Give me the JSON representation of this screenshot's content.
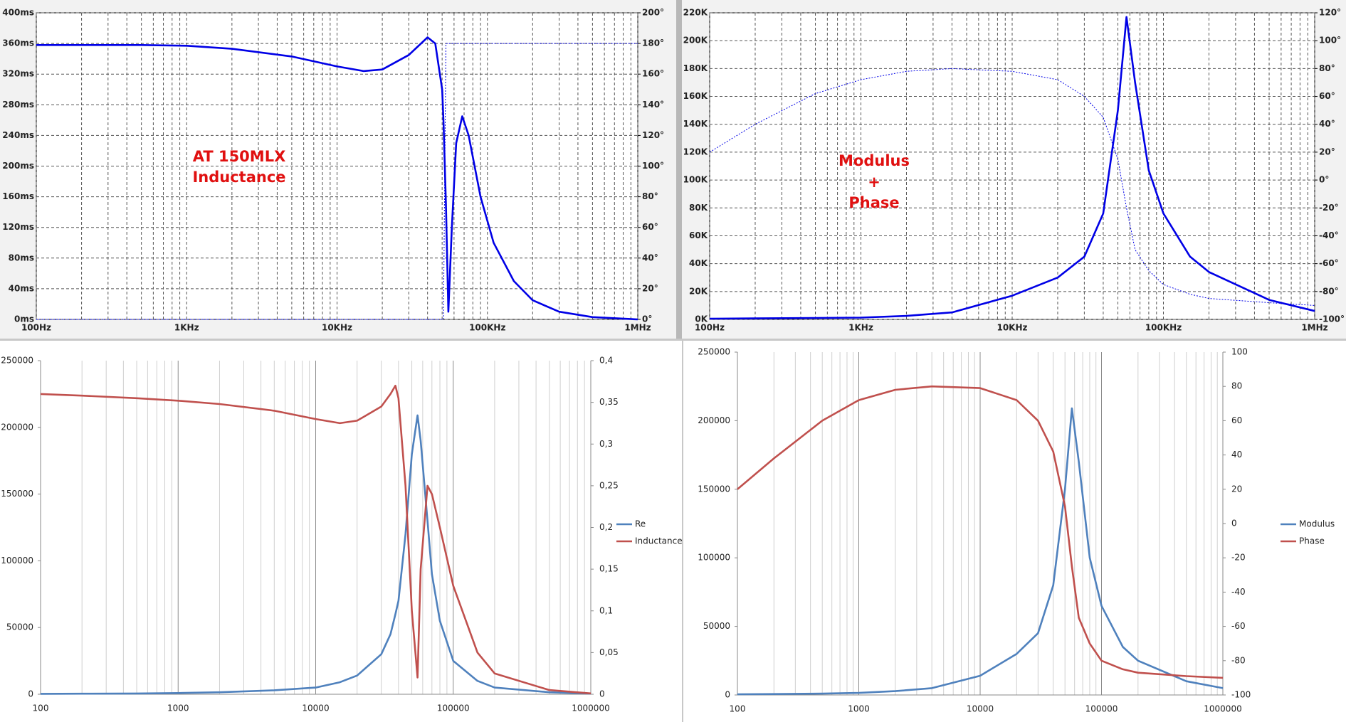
{
  "chart_data": [
    {
      "type": "line",
      "x_scale": "log",
      "grid": "both",
      "grid_style": "dashed",
      "annotations": [
        "AT 150MLX",
        "Inductance"
      ],
      "x": [
        100,
        200,
        500,
        1000,
        2000,
        5000,
        10000,
        15000,
        20000,
        30000,
        40000,
        45000,
        50000,
        51000,
        53000,
        55000,
        58000,
        62000,
        68000,
        75000,
        90000,
        110000,
        150000,
        200000,
        300000,
        500000,
        1000000
      ],
      "xlim": [
        100,
        1000000
      ],
      "xticks": [
        {
          "value": 100,
          "label": "100Hz"
        },
        {
          "value": 1000,
          "label": "1KHz"
        },
        {
          "value": 10000,
          "label": "10KHz"
        },
        {
          "value": 100000,
          "label": "100KHz"
        },
        {
          "value": 1000000,
          "label": "1MHz"
        }
      ],
      "ylim": [
        0,
        400
      ],
      "yticks": [
        {
          "value": 0,
          "label": "0ms"
        },
        {
          "value": 40,
          "label": "40ms"
        },
        {
          "value": 80,
          "label": "80ms"
        },
        {
          "value": 120,
          "label": "120ms"
        },
        {
          "value": 160,
          "label": "160ms"
        },
        {
          "value": 200,
          "label": "200ms"
        },
        {
          "value": 240,
          "label": "240ms"
        },
        {
          "value": 280,
          "label": "280ms"
        },
        {
          "value": 320,
          "label": "320ms"
        },
        {
          "value": 360,
          "label": "360ms"
        },
        {
          "value": 400,
          "label": "400ms"
        }
      ],
      "y2lim": [
        0,
        200
      ],
      "y2ticks": [
        {
          "value": 0,
          "label": "0°"
        },
        {
          "value": 20,
          "label": "20°"
        },
        {
          "value": 40,
          "label": "40°"
        },
        {
          "value": 60,
          "label": "60°"
        },
        {
          "value": 80,
          "label": "80°"
        },
        {
          "value": 100,
          "label": "100°"
        },
        {
          "value": 120,
          "label": "120°"
        },
        {
          "value": 140,
          "label": "140°"
        },
        {
          "value": 160,
          "label": "160°"
        },
        {
          "value": 180,
          "label": "180°"
        },
        {
          "value": 200,
          "label": "200°"
        }
      ],
      "series": [
        {
          "color": "#0000e6",
          "line_style": "solid",
          "values": [
            358,
            358,
            358,
            357,
            353,
            343,
            330,
            324,
            326,
            345,
            368,
            360,
            300,
            260,
            150,
            10,
            120,
            230,
            265,
            240,
            160,
            100,
            50,
            25,
            10,
            3,
            0
          ]
        },
        {
          "color": "#0000e6",
          "line_style": "dotted",
          "axis": "y2",
          "values": [
            0,
            0,
            0,
            0,
            0,
            0,
            0,
            0,
            0,
            0,
            0,
            0,
            0,
            0,
            180,
            180,
            180,
            180,
            180,
            180,
            180,
            180,
            180,
            180,
            180,
            180,
            180
          ]
        }
      ]
    },
    {
      "type": "line",
      "x_scale": "log",
      "grid": "both",
      "grid_style": "dashed",
      "annotations": [
        "Modulus",
        "+",
        "Phase"
      ],
      "x": [
        100,
        200,
        500,
        1000,
        2000,
        4000,
        10000,
        20000,
        30000,
        40000,
        50000,
        57000,
        65000,
        80000,
        100000,
        150000,
        200000,
        500000,
        1000000
      ],
      "xlim": [
        100,
        1000000
      ],
      "xticks": [
        {
          "value": 100,
          "label": "100Hz"
        },
        {
          "value": 1000,
          "label": "1KHz"
        },
        {
          "value": 10000,
          "label": "10KHz"
        },
        {
          "value": 100000,
          "label": "100KHz"
        },
        {
          "value": 1000000,
          "label": "1MHz"
        }
      ],
      "ylim": [
        0,
        220000
      ],
      "yticks": [
        {
          "value": 0,
          "label": "0K"
        },
        {
          "value": 20000,
          "label": "20K"
        },
        {
          "value": 40000,
          "label": "40K"
        },
        {
          "value": 60000,
          "label": "60K"
        },
        {
          "value": 80000,
          "label": "80K"
        },
        {
          "value": 100000,
          "label": "100K"
        },
        {
          "value": 120000,
          "label": "120K"
        },
        {
          "value": 140000,
          "label": "140K"
        },
        {
          "value": 160000,
          "label": "160K"
        },
        {
          "value": 180000,
          "label": "180K"
        },
        {
          "value": 200000,
          "label": "200K"
        },
        {
          "value": 220000,
          "label": "220K"
        }
      ],
      "y2lim": [
        -100,
        120
      ],
      "y2ticks": [
        {
          "value": -100,
          "label": "-100°"
        },
        {
          "value": -80,
          "label": "-80°"
        },
        {
          "value": -60,
          "label": "-60°"
        },
        {
          "value": -40,
          "label": "-40°"
        },
        {
          "value": -20,
          "label": "-20°"
        },
        {
          "value": 0,
          "label": "0°"
        },
        {
          "value": 20,
          "label": "20°"
        },
        {
          "value": 40,
          "label": "40°"
        },
        {
          "value": 60,
          "label": "60°"
        },
        {
          "value": 80,
          "label": "80°"
        },
        {
          "value": 100,
          "label": "100°"
        },
        {
          "value": 120,
          "label": "120°"
        }
      ],
      "series": [
        {
          "color": "#0000e6",
          "line_style": "solid",
          "values": [
            500,
            700,
            1000,
            1300,
            2500,
            5000,
            17000,
            30000,
            45000,
            76000,
            150000,
            217000,
            170000,
            107000,
            76000,
            45000,
            34000,
            14000,
            6000
          ]
        },
        {
          "color": "#0000e6",
          "line_style": "dotted",
          "axis": "y2",
          "values": [
            20,
            40,
            62,
            72,
            78,
            80,
            78,
            72,
            60,
            45,
            15,
            -20,
            -50,
            -65,
            -75,
            -82,
            -85,
            -88,
            -90
          ]
        }
      ]
    },
    {
      "type": "line",
      "x_scale": "log",
      "grid": "x",
      "grid_style": "solid",
      "legend": "right",
      "x": [
        100,
        200,
        500,
        1000,
        2000,
        5000,
        10000,
        15000,
        20000,
        30000,
        35000,
        38000,
        40000,
        45000,
        50000,
        55000,
        58000,
        65000,
        70000,
        80000,
        100000,
        150000,
        200000,
        500000,
        1000000
      ],
      "xlim": [
        100,
        1000000
      ],
      "xticks": [
        100,
        1000,
        10000,
        100000,
        1000000
      ],
      "ylim": [
        0,
        250000
      ],
      "yticks": [
        0,
        50000,
        100000,
        150000,
        200000,
        250000
      ],
      "y2lim": [
        0,
        0.4
      ],
      "y2ticks": [
        0,
        {
          "value": 0.05,
          "label": "0,05"
        },
        {
          "value": 0.1,
          "label": "0,1"
        },
        {
          "value": 0.15,
          "label": "0,15"
        },
        {
          "value": 0.2,
          "label": "0,2"
        },
        {
          "value": 0.25,
          "label": "0,25"
        },
        {
          "value": 0.3,
          "label": "0,3"
        },
        {
          "value": 0.35,
          "label": "0,35"
        },
        {
          "value": 0.4,
          "label": "0,4"
        }
      ],
      "series": [
        {
          "name": "Re",
          "color": "#4f81bd",
          "line_style": "solid",
          "values": [
            300,
            400,
            600,
            900,
            1500,
            3000,
            5000,
            9000,
            14000,
            30000,
            45000,
            60000,
            70000,
            120000,
            180000,
            209000,
            190000,
            130000,
            90000,
            55000,
            25000,
            10000,
            5000,
            1500,
            500
          ]
        },
        {
          "name": "Inductance",
          "color": "#c0504d",
          "line_style": "solid",
          "axis": "y2",
          "values": [
            0.36,
            0.358,
            0.355,
            0.352,
            0.348,
            0.34,
            0.33,
            0.325,
            0.328,
            0.345,
            0.36,
            0.37,
            0.355,
            0.25,
            0.1,
            0.02,
            0.15,
            0.25,
            0.24,
            0.2,
            0.13,
            0.05,
            0.025,
            0.005,
            0.001
          ]
        }
      ]
    },
    {
      "type": "line",
      "x_scale": "log",
      "grid": "x",
      "grid_style": "solid",
      "legend": "right",
      "x": [
        100,
        200,
        500,
        1000,
        2000,
        4000,
        10000,
        20000,
        30000,
        40000,
        50000,
        57000,
        65000,
        80000,
        100000,
        150000,
        200000,
        500000,
        1000000
      ],
      "xlim": [
        100,
        1000000
      ],
      "xticks": [
        100,
        1000,
        10000,
        100000,
        1000000
      ],
      "ylim": [
        0,
        250000
      ],
      "yticks": [
        0,
        50000,
        100000,
        150000,
        200000,
        250000
      ],
      "y2lim": [
        -100,
        100
      ],
      "y2ticks": [
        -100,
        -80,
        -60,
        -40,
        -20,
        0,
        20,
        40,
        60,
        80,
        100
      ],
      "series": [
        {
          "name": "Modulus",
          "color": "#4f81bd",
          "line_style": "solid",
          "values": [
            500,
            700,
            1000,
            1500,
            2800,
            5000,
            14000,
            30000,
            45000,
            80000,
            150000,
            209000,
            170000,
            100000,
            65000,
            35000,
            25000,
            10000,
            5000
          ]
        },
        {
          "name": "Phase",
          "color": "#c0504d",
          "line_style": "solid",
          "axis": "y2",
          "values": [
            20,
            38,
            60,
            72,
            78,
            80,
            79,
            72,
            60,
            42,
            10,
            -25,
            -55,
            -70,
            -80,
            -85,
            -87,
            -89,
            -90
          ]
        }
      ]
    }
  ]
}
